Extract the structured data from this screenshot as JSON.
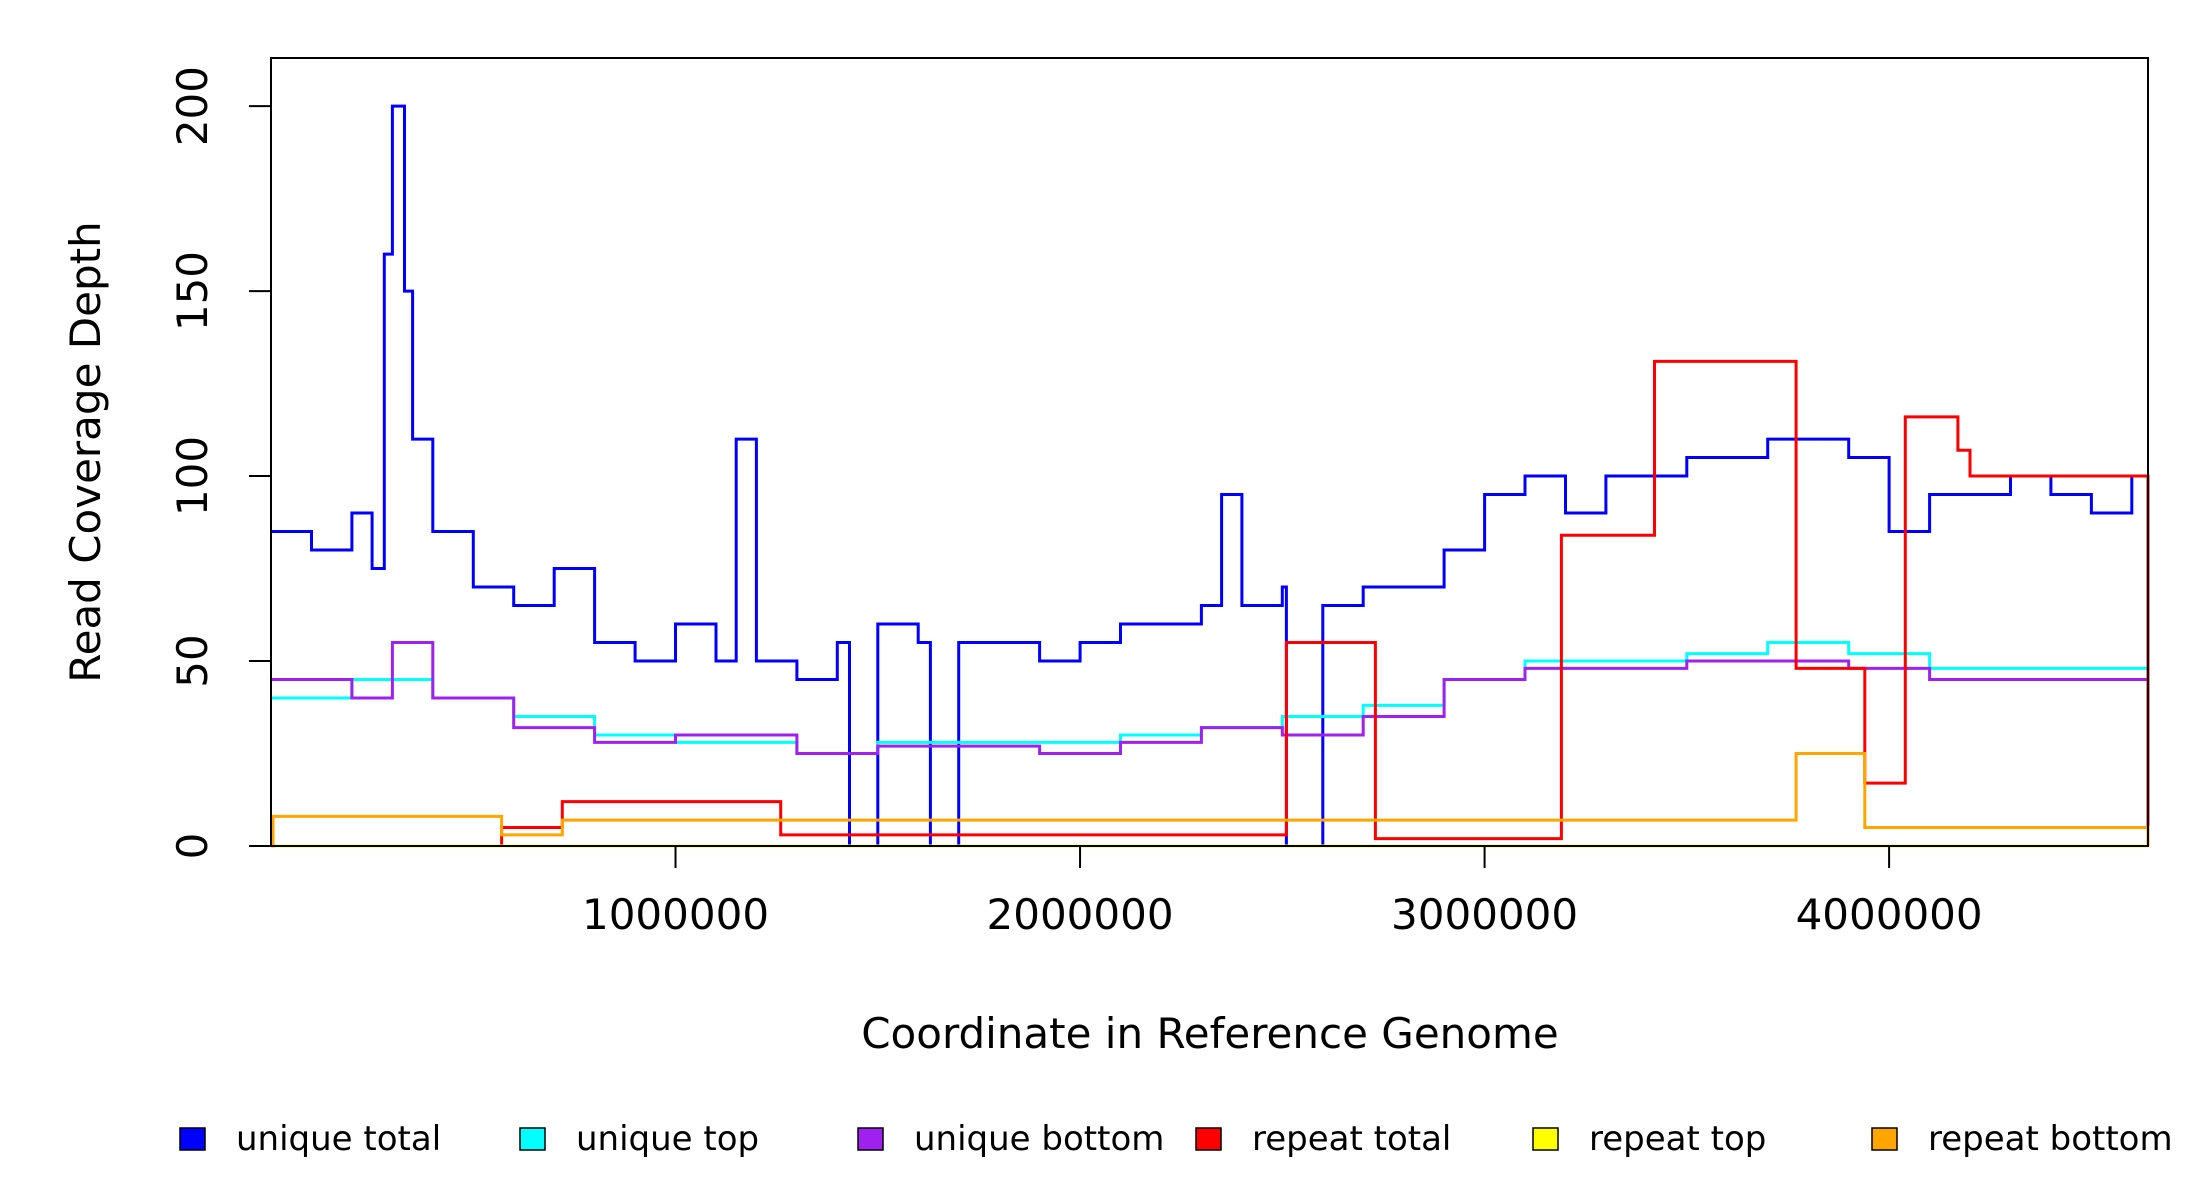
{
  "chart_data": {
    "type": "line",
    "xlabel": "Coordinate in Reference Genome",
    "ylabel": "Read Coverage Depth",
    "xlim": [
      0,
      4640000
    ],
    "ylim": [
      0,
      213
    ],
    "x_ticks": [
      {
        "value": 1000000,
        "label": "1000000"
      },
      {
        "value": 2000000,
        "label": "2000000"
      },
      {
        "value": 3000000,
        "label": "3000000"
      },
      {
        "value": 4000000,
        "label": "4000000"
      }
    ],
    "y_ticks": [
      {
        "value": 0,
        "label": "0"
      },
      {
        "value": 50,
        "label": "50"
      },
      {
        "value": 100,
        "label": "100"
      },
      {
        "value": 150,
        "label": "150"
      },
      {
        "value": 200,
        "label": "200"
      }
    ],
    "legend_position": "bottom",
    "series": [
      {
        "name": "unique total",
        "color": "#0000ff",
        "x": [
          0,
          100000,
          200000,
          250000,
          280000,
          300000,
          330000,
          350000,
          400000,
          500000,
          600000,
          700000,
          800000,
          900000,
          1000000,
          1100000,
          1150000,
          1200000,
          1300000,
          1400000,
          1430000,
          1500000,
          1600000,
          1630000,
          1700000,
          1800000,
          1900000,
          2000000,
          2100000,
          2200000,
          2300000,
          2350000,
          2400000,
          2500000,
          2510000,
          2600000,
          2700000,
          2800000,
          2900000,
          3000000,
          3100000,
          3200000,
          3300000,
          3400000,
          3500000,
          3600000,
          3700000,
          3800000,
          3900000,
          4000000,
          4100000,
          4200000,
          4300000,
          4400000,
          4500000,
          4600000,
          4640000
        ],
        "values": [
          85,
          80,
          90,
          75,
          160,
          200,
          150,
          110,
          85,
          70,
          65,
          75,
          55,
          50,
          60,
          50,
          110,
          50,
          45,
          55,
          0,
          60,
          55,
          0,
          55,
          55,
          50,
          55,
          60,
          60,
          65,
          95,
          65,
          70,
          0,
          65,
          70,
          70,
          80,
          95,
          100,
          90,
          100,
          100,
          105,
          105,
          110,
          110,
          105,
          85,
          95,
          95,
          100,
          95,
          90,
          100,
          90
        ]
      },
      {
        "name": "unique top",
        "color": "#00ffff",
        "x": [
          0,
          200000,
          300000,
          400000,
          600000,
          800000,
          1000000,
          1300000,
          1500000,
          1700000,
          1900000,
          2100000,
          2300000,
          2500000,
          2700000,
          2900000,
          3100000,
          3300000,
          3500000,
          3700000,
          3900000,
          4100000,
          4300000,
          4500000,
          4640000
        ],
        "values": [
          40,
          45,
          45,
          40,
          35,
          30,
          28,
          25,
          28,
          28,
          28,
          30,
          32,
          35,
          38,
          45,
          50,
          50,
          52,
          55,
          52,
          48,
          48,
          48,
          45
        ]
      },
      {
        "name": "unique bottom",
        "color": "#a020f0",
        "x": [
          0,
          200000,
          300000,
          400000,
          600000,
          800000,
          1000000,
          1300000,
          1500000,
          1700000,
          1900000,
          2100000,
          2300000,
          2500000,
          2700000,
          2900000,
          3100000,
          3300000,
          3500000,
          3700000,
          3900000,
          4100000,
          4300000,
          4500000,
          4640000
        ],
        "values": [
          45,
          40,
          55,
          40,
          32,
          28,
          30,
          25,
          27,
          27,
          25,
          28,
          32,
          30,
          35,
          45,
          48,
          48,
          50,
          50,
          48,
          45,
          45,
          45,
          45
        ]
      },
      {
        "name": "repeat total",
        "color": "#ff0000",
        "x": [
          0,
          570000,
          720000,
          1260000,
          2510000,
          2730000,
          3190000,
          3420000,
          3770000,
          3940000,
          4040000,
          4170000,
          4200000,
          4640000
        ],
        "values": [
          0,
          5,
          12,
          3,
          55,
          2,
          84,
          131,
          48,
          17,
          116,
          107,
          100,
          0
        ]
      },
      {
        "name": "repeat top",
        "color": "#ffff00",
        "x": [
          0,
          4640000
        ],
        "values": [
          0,
          0
        ]
      },
      {
        "name": "repeat bottom",
        "color": "#ffa500",
        "x": [
          0,
          5000,
          570000,
          720000,
          3770000,
          3940000,
          4640000
        ],
        "values": [
          0,
          8,
          3,
          7,
          25,
          5,
          0
        ]
      }
    ]
  }
}
